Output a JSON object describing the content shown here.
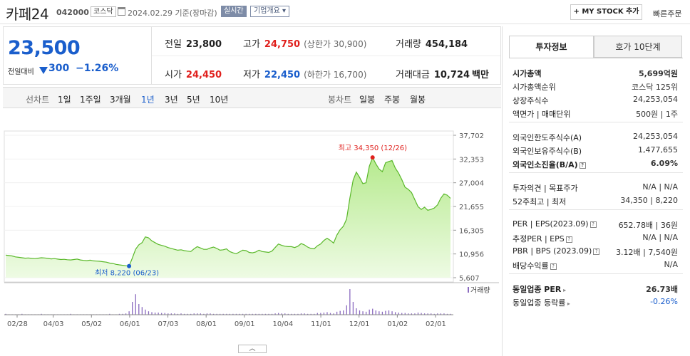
{
  "header": {
    "name": "카페24",
    "code": "042000",
    "market": "코스닥",
    "date": "2024.02.29 기준(장마감)",
    "realtime": "실시간",
    "corp_overview": "기업개요",
    "my_stock": "+ MY STOCK 추가",
    "quick_order": "빠른주문"
  },
  "price": {
    "current": "23,500",
    "change_label": "전일대비",
    "change": "300",
    "change_pct": "−1.26%",
    "direction": "down"
  },
  "stats": {
    "prev_close_label": "전일",
    "prev_close": "23,800",
    "high_label": "고가",
    "high": "24,750",
    "upper_limit": "(상한가 30,900)",
    "volume_label": "거래량",
    "volume": "454,184",
    "open_label": "시가",
    "open": "24,450",
    "low_label": "저가",
    "low": "22,450",
    "lower_limit": "(하한가 16,700)",
    "amount_label": "거래대금",
    "amount": "10,724",
    "amount_unit": "백만"
  },
  "toolbar": {
    "line_chart": "선차트",
    "periods": [
      "1일",
      "1주일",
      "3개월",
      "1년",
      "3년",
      "5년",
      "10년"
    ],
    "selected_period": "1년",
    "candle_chart": "봉차트",
    "candles": [
      "일봉",
      "주봉",
      "월봉"
    ]
  },
  "chart_data": {
    "type": "area",
    "y_ticks": [
      "37,702",
      "32,353",
      "27,004",
      "21,655",
      "16,305",
      "10,956",
      "5,607"
    ],
    "x_ticks": [
      "02/28",
      "04/03",
      "05/02",
      "06/01",
      "07/03",
      "08/01",
      "09/01",
      "10/04",
      "11/01",
      "12/01",
      "01/02",
      "02/01"
    ],
    "ylim": [
      5607,
      37702
    ],
    "high_label": "최고 34,350 (12/26)",
    "low_label": "최저 8,220 (06/23)",
    "volume_label": "거래량",
    "line_color": "#5ab82a",
    "fill_color": "#c8f0a8",
    "values": [
      10700,
      10600,
      10500,
      10300,
      10200,
      10100,
      10000,
      10050,
      9950,
      9900,
      10000,
      10100,
      10050,
      9950,
      9850,
      9900,
      9800,
      9700,
      9750,
      9650,
      9600,
      9700,
      9800,
      9600,
      9500,
      9450,
      9550,
      9400,
      9350,
      9300,
      9200,
      9100,
      8900,
      8800,
      8600,
      8500,
      8400,
      8300,
      8220,
      10000,
      12000,
      13000,
      13500,
      14800,
      14600,
      13900,
      13500,
      13100,
      12900,
      12700,
      12400,
      12200,
      12000,
      11800,
      11900,
      11700,
      11600,
      11500,
      12100,
      12600,
      12300,
      12000,
      12000,
      12300,
      12500,
      12200,
      11800,
      11900,
      12100,
      11500,
      11200,
      11000,
      11400,
      11800,
      11700,
      11300,
      11200,
      11400,
      11800,
      11500,
      11400,
      11300,
      11600,
      12400,
      13200,
      12900,
      12700,
      12600,
      12600,
      12400,
      12700,
      13300,
      13000,
      12500,
      12200,
      12100,
      12800,
      13200,
      14000,
      14500,
      14000,
      13400,
      15200,
      16400,
      17200,
      18800,
      23500,
      27600,
      29400,
      28200,
      26800,
      27000,
      30700,
      32700,
      31300,
      30100,
      29500,
      31500,
      31800,
      32000,
      30300,
      29200,
      27700,
      26000,
      25500,
      24800,
      23200,
      21600,
      21000,
      21500,
      20800,
      21000,
      21300,
      22000,
      23500,
      24500,
      24200,
      23500
    ],
    "volumes": [
      2,
      1,
      1,
      1,
      1,
      2,
      1,
      1,
      1,
      1,
      1,
      2,
      1,
      1,
      1,
      1,
      1,
      1,
      1,
      1,
      2,
      1,
      1,
      1,
      1,
      1,
      1,
      1,
      1,
      1,
      1,
      1,
      2,
      1,
      1,
      2,
      2,
      3,
      8,
      30,
      48,
      25,
      18,
      12,
      8,
      6,
      5,
      5,
      4,
      4,
      3,
      3,
      3,
      2,
      3,
      2,
      2,
      2,
      3,
      3,
      3,
      2,
      3,
      3,
      2,
      2,
      2,
      2,
      2,
      2,
      2,
      2,
      2,
      2,
      2,
      2,
      2,
      2,
      2,
      2,
      2,
      2,
      2,
      3,
      4,
      3,
      3,
      2,
      2,
      2,
      2,
      3,
      3,
      2,
      2,
      2,
      4,
      4,
      5,
      6,
      4,
      3,
      7,
      9,
      10,
      22,
      60,
      30,
      15,
      10,
      8,
      7,
      12,
      14,
      10,
      8,
      7,
      9,
      10,
      8,
      6,
      5,
      4,
      4,
      3,
      3,
      3,
      5,
      4,
      3,
      3,
      3,
      2,
      3,
      3,
      3,
      2,
      2
    ]
  },
  "investment_panel": {
    "tab_active": "투자정보",
    "tab_other": "호가 10단계",
    "rows": [
      {
        "k": "시가총액",
        "v": "5,699억원"
      },
      {
        "k": "시가총액순위",
        "v": "코스닥 125위"
      },
      {
        "k": "상장주식수",
        "v": "24,253,054"
      },
      {
        "k": "액면가 | 매매단위",
        "v": "500원 | 1주"
      },
      {
        "k": "외국인한도주식수(A)",
        "v": "24,253,054"
      },
      {
        "k": "외국인보유주식수(B)",
        "v": "1,477,655"
      },
      {
        "k": "외국인소진율(B/A)",
        "v": "6.09%"
      },
      {
        "k": "투자의견 | 목표주가",
        "v": "N/A | N/A"
      },
      {
        "k": "52주최고 | 최저",
        "v": "34,350 | 8,220"
      },
      {
        "k": "PER | EPS(2023.09)",
        "v": "652.78배 | 36원"
      },
      {
        "k": "추정PER | EPS",
        "v": "N/A | N/A"
      },
      {
        "k": "PBR | BPS (2023.09)",
        "v": "3.12배 | 7,540원"
      },
      {
        "k": "배당수익률",
        "v": "N/A"
      },
      {
        "k": "동일업종 PER",
        "v": "26.73배"
      },
      {
        "k": "동일업종 등락률",
        "v": "-0.26%"
      }
    ]
  }
}
